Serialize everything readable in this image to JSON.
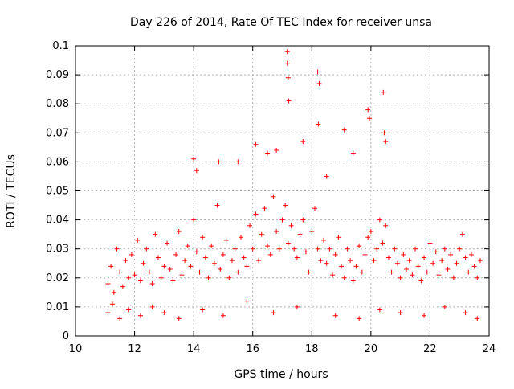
{
  "chart_data": {
    "type": "scatter",
    "title": "Day 226 of 2014, Rate Of TEC Index for receiver unsa",
    "xlabel": "GPS time / hours",
    "ylabel": "ROTI / TECUs",
    "xlim": [
      10,
      24
    ],
    "ylim": [
      0,
      0.1
    ],
    "x_ticks": [
      10,
      12,
      14,
      16,
      18,
      20,
      22,
      24
    ],
    "x_tick_labels": [
      "10",
      "12",
      "14",
      "16",
      "18",
      "20",
      "22",
      "24"
    ],
    "y_ticks": [
      0,
      0.01,
      0.02,
      0.03,
      0.04,
      0.05,
      0.06,
      0.07,
      0.08,
      0.09,
      0.1
    ],
    "y_tick_labels": [
      "0",
      "0.01",
      "0.02",
      "0.03",
      "0.04",
      "0.05",
      "0.06",
      "0.07",
      "0.08",
      "0.09",
      "0.1"
    ],
    "grid": true,
    "marker": "+",
    "color": "#ff0000",
    "series": [
      {
        "name": "ROTI",
        "x": [
          11.1,
          11.2,
          11.3,
          11.4,
          11.5,
          11.6,
          11.7,
          11.8,
          11.9,
          12.0,
          12.1,
          12.2,
          12.3,
          12.4,
          12.5,
          12.6,
          12.7,
          12.8,
          12.9,
          13.0,
          13.1,
          13.2,
          13.3,
          13.4,
          13.5,
          13.6,
          13.7,
          13.8,
          13.9,
          14.0,
          14.1,
          14.2,
          14.3,
          14.4,
          14.5,
          14.6,
          14.7,
          14.8,
          14.9,
          15.0,
          15.1,
          15.2,
          15.3,
          15.4,
          15.5,
          15.6,
          15.7,
          15.8,
          15.9,
          16.0,
          16.1,
          16.2,
          16.3,
          16.4,
          16.5,
          16.6,
          16.7,
          16.8,
          16.9,
          17.0,
          17.1,
          17.2,
          17.3,
          17.4,
          17.5,
          17.6,
          17.7,
          17.8,
          17.9,
          18.0,
          18.1,
          18.2,
          18.3,
          18.4,
          18.5,
          18.6,
          18.7,
          18.8,
          18.9,
          19.0,
          19.1,
          19.2,
          19.3,
          19.4,
          19.5,
          19.6,
          19.7,
          19.8,
          19.9,
          20.0,
          20.1,
          20.2,
          20.3,
          20.4,
          20.5,
          20.6,
          20.7,
          20.8,
          20.9,
          21.0,
          21.1,
          21.2,
          21.3,
          21.4,
          21.5,
          21.6,
          21.7,
          21.8,
          21.9,
          22.0,
          22.1,
          22.2,
          22.3,
          22.4,
          22.5,
          22.6,
          22.7,
          22.8,
          22.9,
          23.0,
          23.1,
          23.2,
          23.3,
          23.4,
          23.5,
          23.6,
          23.7,
          17.17,
          17.17,
          17.2,
          17.22,
          18.2,
          18.25,
          18.22,
          19.1,
          19.9,
          19.95,
          20.42,
          20.5,
          20.45,
          16.1,
          16.5,
          15.5,
          14.0,
          14.1,
          14.85,
          16.8,
          17.7,
          18.5,
          19.4,
          11.1,
          11.25,
          11.5,
          11.8,
          12.2,
          12.6,
          13.0,
          13.5,
          14.3,
          15.0,
          15.8,
          16.7,
          17.5,
          18.8,
          19.6,
          20.3,
          21.0,
          21.8,
          22.5,
          23.2,
          23.6
        ],
        "y": [
          0.018,
          0.024,
          0.015,
          0.03,
          0.022,
          0.017,
          0.026,
          0.02,
          0.028,
          0.021,
          0.033,
          0.019,
          0.025,
          0.03,
          0.022,
          0.018,
          0.035,
          0.027,
          0.02,
          0.024,
          0.032,
          0.023,
          0.019,
          0.028,
          0.036,
          0.021,
          0.026,
          0.031,
          0.024,
          0.04,
          0.029,
          0.022,
          0.034,
          0.027,
          0.02,
          0.031,
          0.025,
          0.045,
          0.023,
          0.028,
          0.033,
          0.02,
          0.026,
          0.03,
          0.022,
          0.034,
          0.027,
          0.024,
          0.038,
          0.03,
          0.042,
          0.026,
          0.035,
          0.044,
          0.031,
          0.028,
          0.048,
          0.036,
          0.03,
          0.04,
          0.045,
          0.032,
          0.038,
          0.03,
          0.027,
          0.035,
          0.04,
          0.029,
          0.022,
          0.036,
          0.044,
          0.03,
          0.026,
          0.033,
          0.025,
          0.03,
          0.021,
          0.028,
          0.034,
          0.024,
          0.02,
          0.03,
          0.026,
          0.019,
          0.024,
          0.031,
          0.022,
          0.028,
          0.034,
          0.036,
          0.026,
          0.03,
          0.04,
          0.032,
          0.038,
          0.027,
          0.022,
          0.03,
          0.025,
          0.02,
          0.028,
          0.023,
          0.026,
          0.021,
          0.03,
          0.024,
          0.019,
          0.027,
          0.022,
          0.032,
          0.025,
          0.029,
          0.021,
          0.026,
          0.03,
          0.023,
          0.028,
          0.02,
          0.025,
          0.03,
          0.035,
          0.027,
          0.022,
          0.028,
          0.024,
          0.02,
          0.026,
          0.098,
          0.094,
          0.089,
          0.081,
          0.091,
          0.087,
          0.073,
          0.071,
          0.078,
          0.075,
          0.084,
          0.067,
          0.07,
          0.066,
          0.063,
          0.06,
          0.061,
          0.057,
          0.06,
          0.064,
          0.067,
          0.055,
          0.063,
          0.008,
          0.011,
          0.006,
          0.009,
          0.007,
          0.01,
          0.008,
          0.006,
          0.009,
          0.007,
          0.012,
          0.008,
          0.01,
          0.007,
          0.006,
          0.009,
          0.008,
          0.007,
          0.01,
          0.008,
          0.006
        ]
      }
    ]
  }
}
